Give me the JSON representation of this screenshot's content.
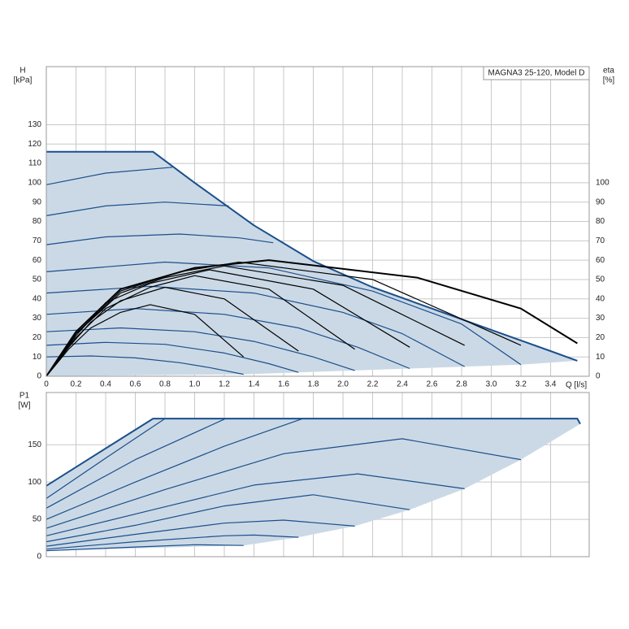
{
  "chart_data": [
    {
      "type": "line",
      "title": "MAGNA3 25-120, Model D",
      "y_label": "H",
      "y_unit": "[kPa]",
      "y2_label": "eta",
      "y2_unit": "[%]",
      "x_label": "Q [l/s]",
      "xlim": [
        0,
        3.66
      ],
      "ylim": [
        0,
        160
      ],
      "y2lim": [
        0,
        160
      ],
      "grid": true,
      "xticks": [
        0,
        0.2,
        0.4,
        0.6,
        0.8,
        {
          "value": 1,
          "label": "1.0"
        },
        1.2,
        1.4,
        1.6,
        1.8,
        {
          "value": 2,
          "label": "2.0"
        },
        2.2,
        2.4,
        2.6,
        2.8,
        {
          "value": 3,
          "label": "3.0"
        },
        3.2,
        3.4
      ],
      "yticks": [
        0,
        10,
        20,
        30,
        40,
        50,
        60,
        70,
        80,
        90,
        100,
        110,
        120,
        130
      ],
      "y2ticks": [
        0,
        10,
        20,
        30,
        40,
        50,
        60,
        70,
        80,
        90,
        100
      ],
      "series": [
        {
          "fill": "#cbd9e6",
          "x": [
            0,
            0.72,
            1.0,
            1.4,
            1.8,
            2.2,
            2.6,
            3.0,
            3.4,
            3.58,
            3.2,
            2.82,
            2.45,
            2.08,
            1.33,
            0
          ],
          "values": [
            116,
            116,
            100,
            78,
            59.5,
            46,
            35,
            24,
            13,
            8,
            6,
            5,
            4,
            3,
            1,
            0
          ]
        },
        {
          "color": "#1a4f8b",
          "width": 2,
          "x": [
            0,
            0.72,
            1.0,
            1.4,
            1.8,
            2.2,
            2.6,
            3.0,
            3.4,
            3.58
          ],
          "values": [
            116,
            116,
            100,
            78,
            59.5,
            46,
            35,
            24,
            13,
            8
          ]
        },
        {
          "color": "#1a4f8b",
          "x": [
            0,
            0.4,
            0.85
          ],
          "values": [
            99,
            105,
            108
          ]
        },
        {
          "color": "#1a4f8b",
          "x": [
            0,
            0.4,
            0.8,
            1.23
          ],
          "values": [
            83,
            88,
            90,
            88
          ]
        },
        {
          "color": "#1a4f8b",
          "x": [
            0,
            0.4,
            0.9,
            1.3,
            1.53
          ],
          "values": [
            68,
            72,
            73.5,
            71.5,
            69
          ]
        },
        {
          "color": "#1a4f8b",
          "x": [
            0,
            0.8,
            1.5,
            2.2,
            2.8,
            3.2
          ],
          "values": [
            54,
            59,
            56,
            44,
            27,
            6
          ]
        },
        {
          "color": "#1a4f8b",
          "x": [
            0,
            0.7,
            1.4,
            2.0,
            2.4,
            2.82
          ],
          "values": [
            43,
            46.5,
            43,
            33,
            22,
            5
          ]
        },
        {
          "color": "#1a4f8b",
          "x": [
            0,
            0.6,
            1.2,
            1.7,
            2.1,
            2.45
          ],
          "values": [
            32,
            35,
            32,
            25,
            15,
            4
          ]
        },
        {
          "color": "#1a4f8b",
          "x": [
            0,
            0.5,
            1.0,
            1.4,
            1.8,
            2.08
          ],
          "values": [
            23,
            25,
            23,
            18,
            10,
            3
          ]
        },
        {
          "color": "#1a4f8b",
          "x": [
            0,
            0.4,
            0.8,
            1.2,
            1.5,
            1.7
          ],
          "values": [
            16,
            17.5,
            16.5,
            12,
            6.5,
            2
          ]
        },
        {
          "color": "#1a4f8b",
          "x": [
            0,
            0.3,
            0.6,
            0.9,
            1.1,
            1.33
          ],
          "values": [
            10,
            10.5,
            9.5,
            7,
            4.5,
            1
          ]
        },
        {
          "color": "#000000",
          "axis": "y2",
          "x": [
            0,
            0.15,
            0.3,
            0.5,
            0.7,
            1.0,
            1.33
          ],
          "values": [
            0,
            14,
            25,
            33,
            37,
            32,
            10
          ]
        },
        {
          "color": "#000000",
          "axis": "y2",
          "x": [
            0,
            0.15,
            0.3,
            0.5,
            0.8,
            1.2,
            1.7
          ],
          "values": [
            0,
            15,
            28,
            39,
            46,
            40,
            13
          ]
        },
        {
          "color": "#000000",
          "axis": "y2",
          "x": [
            0,
            0.2,
            0.4,
            0.7,
            1.0,
            1.5,
            2.08
          ],
          "values": [
            0,
            20,
            35,
            46,
            52,
            45,
            14
          ]
        },
        {
          "color": "#000000",
          "axis": "y2",
          "x": [
            0,
            0.2,
            0.4,
            0.7,
            1.1,
            1.8,
            2.45
          ],
          "values": [
            0,
            21,
            38,
            48,
            55,
            45,
            15
          ]
        },
        {
          "color": "#000000",
          "axis": "y2",
          "x": [
            0,
            0.2,
            0.5,
            0.8,
            1.2,
            2.0,
            2.82
          ],
          "values": [
            0,
            22,
            43,
            51,
            57,
            47,
            16
          ]
        },
        {
          "color": "#000000",
          "axis": "y2",
          "x": [
            0,
            0.2,
            0.5,
            0.9,
            1.3,
            2.2,
            3.2
          ],
          "values": [
            0,
            22,
            44,
            54,
            59,
            50,
            16
          ]
        },
        {
          "color": "#000000",
          "axis": "y2",
          "width": 2,
          "x": [
            0,
            0.2,
            0.5,
            1.0,
            1.5,
            2.5,
            3.2,
            3.58
          ],
          "values": [
            0,
            23,
            45,
            56,
            60,
            51,
            35,
            17
          ]
        }
      ]
    },
    {
      "type": "line",
      "y_label": "P1",
      "y_unit": "[W]",
      "xlim": [
        0,
        3.66
      ],
      "ylim": [
        0,
        220
      ],
      "grid": true,
      "yticks": [
        0,
        50,
        100,
        150
      ],
      "series": [
        {
          "fill": "#cbd9e6",
          "x": [
            0,
            0.72,
            3.58,
            3.6,
            3.2,
            2.82,
            2.45,
            2.08,
            1.7,
            1.33,
            0
          ],
          "values": [
            95,
            185,
            185,
            178,
            130,
            91,
            63,
            41,
            26,
            15,
            8
          ]
        },
        {
          "color": "#1a4f8b",
          "width": 2,
          "x": [
            0,
            0.72,
            3.58,
            3.6
          ],
          "values": [
            95,
            185,
            185,
            178
          ]
        },
        {
          "color": "#1a4f8b",
          "x": [
            0,
            0.4,
            0.8
          ],
          "values": [
            78,
            132,
            185
          ]
        },
        {
          "color": "#1a4f8b",
          "x": [
            0,
            0.6,
            1.21
          ],
          "values": [
            65,
            130,
            185
          ]
        },
        {
          "color": "#1a4f8b",
          "x": [
            0,
            0.6,
            1.2,
            1.73
          ],
          "values": [
            50,
            100,
            148,
            185
          ]
        },
        {
          "color": "#1a4f8b",
          "x": [
            0,
            0.8,
            1.6,
            2.4,
            3.2
          ],
          "values": [
            38,
            90,
            138,
            158,
            130
          ]
        },
        {
          "color": "#1a4f8b",
          "x": [
            0,
            0.7,
            1.4,
            2.1,
            2.82
          ],
          "values": [
            28,
            62,
            96,
            111,
            91
          ]
        },
        {
          "color": "#1a4f8b",
          "x": [
            0,
            0.6,
            1.2,
            1.8,
            2.45
          ],
          "values": [
            20,
            42,
            68,
            83,
            63
          ]
        },
        {
          "color": "#1a4f8b",
          "x": [
            0,
            0.6,
            1.2,
            1.6,
            2.08
          ],
          "values": [
            14,
            30,
            45,
            49,
            41
          ]
        },
        {
          "color": "#1a4f8b",
          "x": [
            0,
            0.6,
            1.2,
            1.4,
            1.7
          ],
          "values": [
            10,
            20,
            28,
            29,
            26
          ]
        },
        {
          "color": "#1a4f8b",
          "x": [
            0,
            0.6,
            1.0,
            1.33
          ],
          "values": [
            8,
            13,
            16,
            15
          ]
        }
      ]
    }
  ]
}
